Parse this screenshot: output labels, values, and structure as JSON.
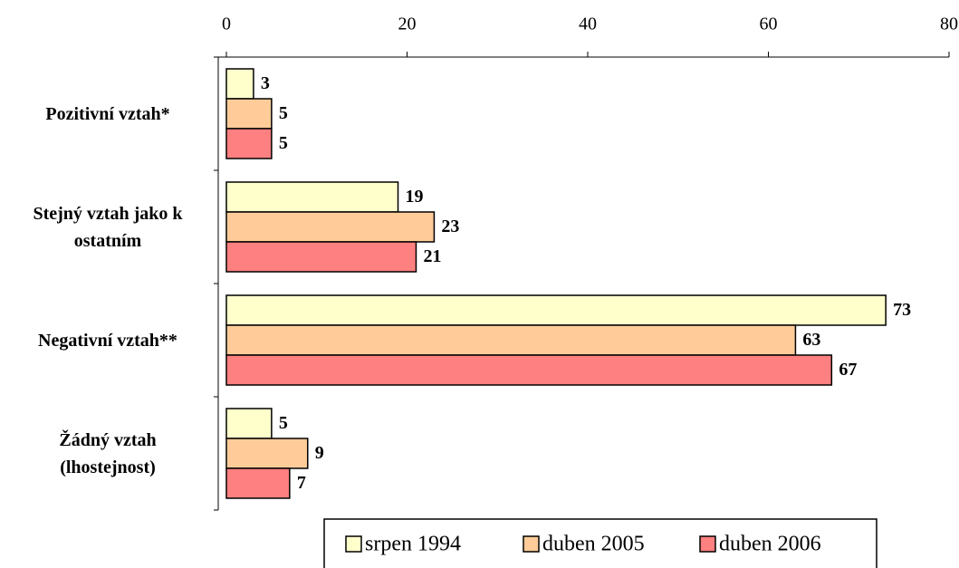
{
  "chart_data": {
    "type": "hbar",
    "categories": [
      "Pozitivní vztah*",
      "Stejný vztah jako k\nostatním",
      "Negativní vztah**",
      "Žádný vztah\n(lhostejnost)"
    ],
    "series": [
      {
        "name": "srpen 1994",
        "color": "#ffffcc",
        "values": [
          3,
          19,
          73,
          5
        ]
      },
      {
        "name": "duben 2005",
        "color": "#ffcc99",
        "values": [
          5,
          23,
          63,
          9
        ]
      },
      {
        "name": "duben 2006",
        "color": "#ff8080",
        "values": [
          5,
          21,
          67,
          7
        ]
      }
    ],
    "xlim": [
      0,
      80
    ],
    "xticks": [
      0,
      20,
      40,
      60,
      80
    ]
  }
}
